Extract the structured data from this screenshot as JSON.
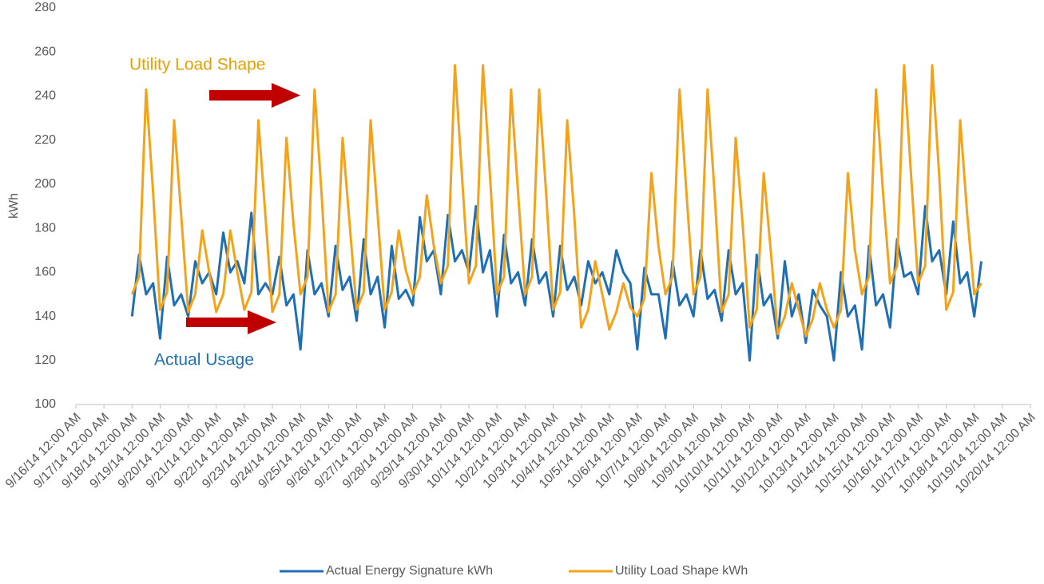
{
  "chart_data": {
    "type": "line",
    "y_label": "kWh",
    "annotations": [
      "Utility Load Shape",
      "Actual Usage"
    ],
    "ylim": [
      100,
      280
    ],
    "yticks": [
      100,
      120,
      140,
      160,
      180,
      200,
      220,
      240,
      260,
      280
    ],
    "xlim": [
      "9/16/14 12:00 AM",
      "10/20/14 12:00 AM"
    ],
    "xticks": [
      "9/16/14 12:00 AM",
      "9/17/14 12:00 AM",
      "9/18/14 12:00 AM",
      "9/19/14 12:00 AM",
      "9/20/14 12:00 AM",
      "9/21/14 12:00 AM",
      "9/22/14 12:00 AM",
      "9/23/14 12:00 AM",
      "9/24/14 12:00 AM",
      "9/25/14 12:00 AM",
      "9/26/14 12:00 AM",
      "9/27/14 12:00 AM",
      "9/28/14 12:00 AM",
      "9/29/14 12:00 AM",
      "9/30/14 12:00 AM",
      "10/1/14 12:00 AM",
      "10/2/14 12:00 AM",
      "10/3/14 12:00 AM",
      "10/4/14 12:00 AM",
      "10/5/14 12:00 AM",
      "10/6/14 12:00 AM",
      "10/7/14 12:00 AM",
      "10/8/14 12:00 AM",
      "10/9/14 12:00 AM",
      "10/10/14 12:00 AM",
      "10/11/14 12:00 AM",
      "10/12/14 12:00 AM",
      "10/13/14 12:00 AM",
      "10/14/14 12:00 AM",
      "10/15/14 12:00 AM",
      "10/16/14 12:00 AM",
      "10/17/14 12:00 AM",
      "10/18/14 12:00 AM",
      "10/19/14 12:00 AM",
      "10/20/14 12:00 AM"
    ],
    "x": [
      "9/18/14 12:00 AM",
      "9/18/14 6:00 AM",
      "9/18/14 12:00 PM",
      "9/18/14 6:00 PM",
      "9/19/14 12:00 AM",
      "9/19/14 6:00 AM",
      "9/19/14 12:00 PM",
      "9/19/14 6:00 PM",
      "9/20/14 12:00 AM",
      "9/20/14 6:00 AM",
      "9/20/14 12:00 PM",
      "9/20/14 6:00 PM",
      "9/21/14 12:00 AM",
      "9/21/14 6:00 AM",
      "9/21/14 12:00 PM",
      "9/21/14 6:00 PM",
      "9/22/14 12:00 AM",
      "9/22/14 6:00 AM",
      "9/22/14 12:00 PM",
      "9/22/14 6:00 PM",
      "9/23/14 12:00 AM",
      "9/23/14 6:00 AM",
      "9/23/14 12:00 PM",
      "9/23/14 6:00 PM",
      "9/24/14 12:00 AM",
      "9/24/14 6:00 AM",
      "9/24/14 12:00 PM",
      "9/24/14 6:00 PM",
      "9/25/14 12:00 AM",
      "9/25/14 6:00 AM",
      "9/25/14 12:00 PM",
      "9/25/14 6:00 PM",
      "9/26/14 12:00 AM",
      "9/26/14 6:00 AM",
      "9/26/14 12:00 PM",
      "9/26/14 6:00 PM",
      "9/27/14 12:00 AM",
      "9/27/14 6:00 AM",
      "9/27/14 12:00 PM",
      "9/27/14 6:00 PM",
      "9/28/14 12:00 AM",
      "9/28/14 6:00 AM",
      "9/28/14 12:00 PM",
      "9/28/14 6:00 PM",
      "9/29/14 12:00 AM",
      "9/29/14 6:00 AM",
      "9/29/14 12:00 PM",
      "9/29/14 6:00 PM",
      "9/30/14 12:00 AM",
      "9/30/14 6:00 AM",
      "9/30/14 12:00 PM",
      "9/30/14 6:00 PM",
      "10/1/14 12:00 AM",
      "10/1/14 6:00 AM",
      "10/1/14 12:00 PM",
      "10/1/14 6:00 PM",
      "10/2/14 12:00 AM",
      "10/2/14 6:00 AM",
      "10/2/14 12:00 PM",
      "10/2/14 6:00 PM",
      "10/3/14 12:00 AM",
      "10/3/14 6:00 AM",
      "10/3/14 12:00 PM",
      "10/3/14 6:00 PM",
      "10/4/14 12:00 AM",
      "10/4/14 6:00 AM",
      "10/4/14 12:00 PM",
      "10/4/14 6:00 PM",
      "10/5/14 12:00 AM",
      "10/5/14 6:00 AM",
      "10/5/14 12:00 PM",
      "10/5/14 6:00 PM",
      "10/6/14 12:00 AM",
      "10/6/14 6:00 AM",
      "10/6/14 12:00 PM",
      "10/6/14 6:00 PM",
      "10/7/14 12:00 AM",
      "10/7/14 6:00 AM",
      "10/7/14 12:00 PM",
      "10/7/14 6:00 PM",
      "10/8/14 12:00 AM",
      "10/8/14 6:00 AM",
      "10/8/14 12:00 PM",
      "10/8/14 6:00 PM",
      "10/9/14 12:00 AM",
      "10/9/14 6:00 AM",
      "10/9/14 12:00 PM",
      "10/9/14 6:00 PM",
      "10/10/14 12:00 AM",
      "10/10/14 6:00 AM",
      "10/10/14 12:00 PM",
      "10/10/14 6:00 PM",
      "10/11/14 12:00 AM",
      "10/11/14 6:00 AM",
      "10/11/14 12:00 PM",
      "10/11/14 6:00 PM",
      "10/12/14 12:00 AM",
      "10/12/14 6:00 AM",
      "10/12/14 12:00 PM",
      "10/12/14 6:00 PM",
      "10/13/14 12:00 AM",
      "10/13/14 6:00 AM",
      "10/13/14 12:00 PM",
      "10/13/14 6:00 PM",
      "10/14/14 12:00 AM",
      "10/14/14 6:00 AM",
      "10/14/14 12:00 PM",
      "10/14/14 6:00 PM",
      "10/15/14 12:00 AM",
      "10/15/14 6:00 AM",
      "10/15/14 12:00 PM",
      "10/15/14 6:00 PM",
      "10/16/14 12:00 AM",
      "10/16/14 6:00 AM",
      "10/16/14 12:00 PM",
      "10/16/14 6:00 PM",
      "10/17/14 12:00 AM",
      "10/17/14 6:00 AM",
      "10/17/14 12:00 PM",
      "10/17/14 6:00 PM",
      "10/18/14 12:00 AM",
      "10/18/14 6:00 AM"
    ],
    "series": [
      {
        "name": "Actual Energy Signature kWh",
        "color": "#1f6fb5",
        "values": [
          140,
          168,
          150,
          155,
          130,
          167,
          145,
          150,
          140,
          165,
          155,
          160,
          150,
          178,
          160,
          165,
          155,
          187,
          150,
          155,
          150,
          167,
          145,
          150,
          125,
          170,
          150,
          155,
          140,
          172,
          152,
          158,
          138,
          175,
          150,
          158,
          135,
          172,
          148,
          152,
          145,
          185,
          165,
          170,
          150,
          186,
          165,
          170,
          160,
          190,
          160,
          170,
          140,
          177,
          155,
          160,
          145,
          175,
          155,
          160,
          140,
          172,
          152,
          158,
          145,
          165,
          155,
          160,
          150,
          170,
          160,
          155,
          125,
          162,
          150,
          150,
          130,
          165,
          145,
          150,
          140,
          170,
          148,
          152,
          138,
          170,
          150,
          155,
          120,
          168,
          145,
          150,
          130,
          165,
          140,
          150,
          128,
          152,
          145,
          140,
          120,
          160,
          140,
          145,
          125,
          172,
          145,
          150,
          135,
          175,
          158,
          160,
          150,
          190,
          165,
          170,
          150,
          183,
          155,
          160,
          140,
          165
        ]
      },
      {
        "name": "Utility Load Shape kWh",
        "color": "#f5a21b",
        "values": [
          150,
          158,
          243,
          196,
          143,
          151,
          229,
          186,
          142,
          150,
          179,
          160,
          142,
          150,
          179,
          160,
          143,
          151,
          229,
          186,
          142,
          150,
          221,
          182,
          150,
          158,
          243,
          196,
          142,
          150,
          221,
          182,
          143,
          151,
          229,
          186,
          143,
          151,
          179,
          161,
          150,
          158,
          195,
          172,
          155,
          163,
          254,
          204,
          155,
          163,
          254,
          204,
          150,
          158,
          243,
          196,
          150,
          158,
          243,
          196,
          143,
          151,
          229,
          186,
          135,
          143,
          165,
          150,
          134,
          142,
          155,
          144,
          140,
          148,
          205,
          172,
          150,
          158,
          243,
          196,
          150,
          158,
          243,
          196,
          142,
          150,
          221,
          182,
          135,
          143,
          205,
          170,
          132,
          140,
          155,
          143,
          131,
          139,
          155,
          143,
          135,
          143,
          205,
          170,
          150,
          158,
          243,
          196,
          155,
          163,
          254,
          204,
          155,
          163,
          254,
          204,
          143,
          151,
          229,
          186,
          150,
          155
        ]
      }
    ]
  }
}
